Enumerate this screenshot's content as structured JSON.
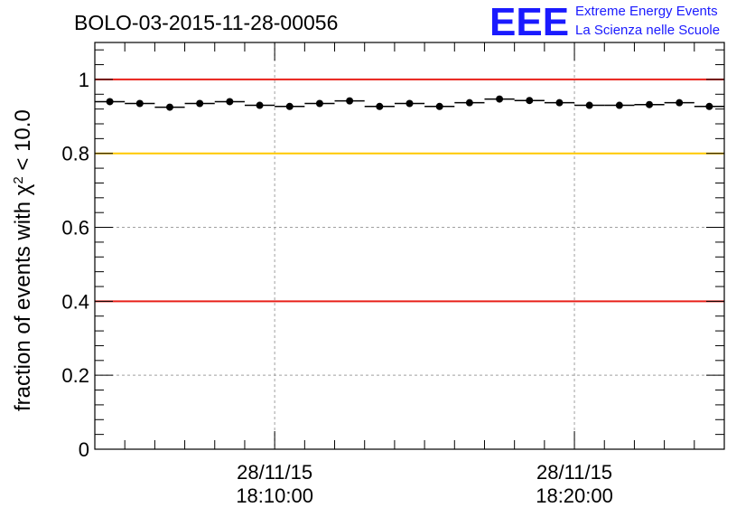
{
  "chart_data": {
    "type": "scatter",
    "title": "BOLO-03-2015-11-28-00056",
    "xlabel": "",
    "ylabel_prefix": "fraction of events with χ",
    "ylabel_sup": "2",
    "ylabel_suffix": " < 10.0",
    "ylim": [
      0,
      1.1
    ],
    "yticks": [
      0,
      0.2,
      0.4,
      0.6,
      0.8,
      1
    ],
    "ytick_labels": [
      "0",
      "0.2",
      "0.4",
      "0.6",
      "0.8",
      "1"
    ],
    "xlim_minutes": [
      0,
      21
    ],
    "xticks": [
      {
        "minute": 6,
        "date": "28/11/15",
        "time": "18:10:00"
      },
      {
        "minute": 16,
        "date": "28/11/15",
        "time": "18:20:00"
      }
    ],
    "grid": true,
    "bin_width_minutes": 1,
    "series": [
      {
        "name": "fraction",
        "x_minutes": [
          0.5,
          1.5,
          2.5,
          3.5,
          4.5,
          5.5,
          6.5,
          7.5,
          8.5,
          9.5,
          10.5,
          11.5,
          12.5,
          13.5,
          14.5,
          15.5,
          16.5,
          17.5,
          18.5,
          19.5,
          20.5
        ],
        "y": [
          0.94,
          0.935,
          0.925,
          0.935,
          0.94,
          0.93,
          0.927,
          0.935,
          0.942,
          0.927,
          0.935,
          0.927,
          0.937,
          0.947,
          0.943,
          0.937,
          0.93,
          0.93,
          0.932,
          0.937,
          0.927
        ]
      }
    ],
    "reference_lines": [
      {
        "y": 1.0,
        "color": "#e8201a"
      },
      {
        "y": 0.8,
        "color": "#ffc800"
      },
      {
        "y": 0.4,
        "color": "#e8201a"
      }
    ]
  },
  "logo": {
    "letters": "EEE",
    "line1": "Extreme Energy Events",
    "line2": "La Scienza nelle Scuole",
    "color": "#1a1aff"
  }
}
